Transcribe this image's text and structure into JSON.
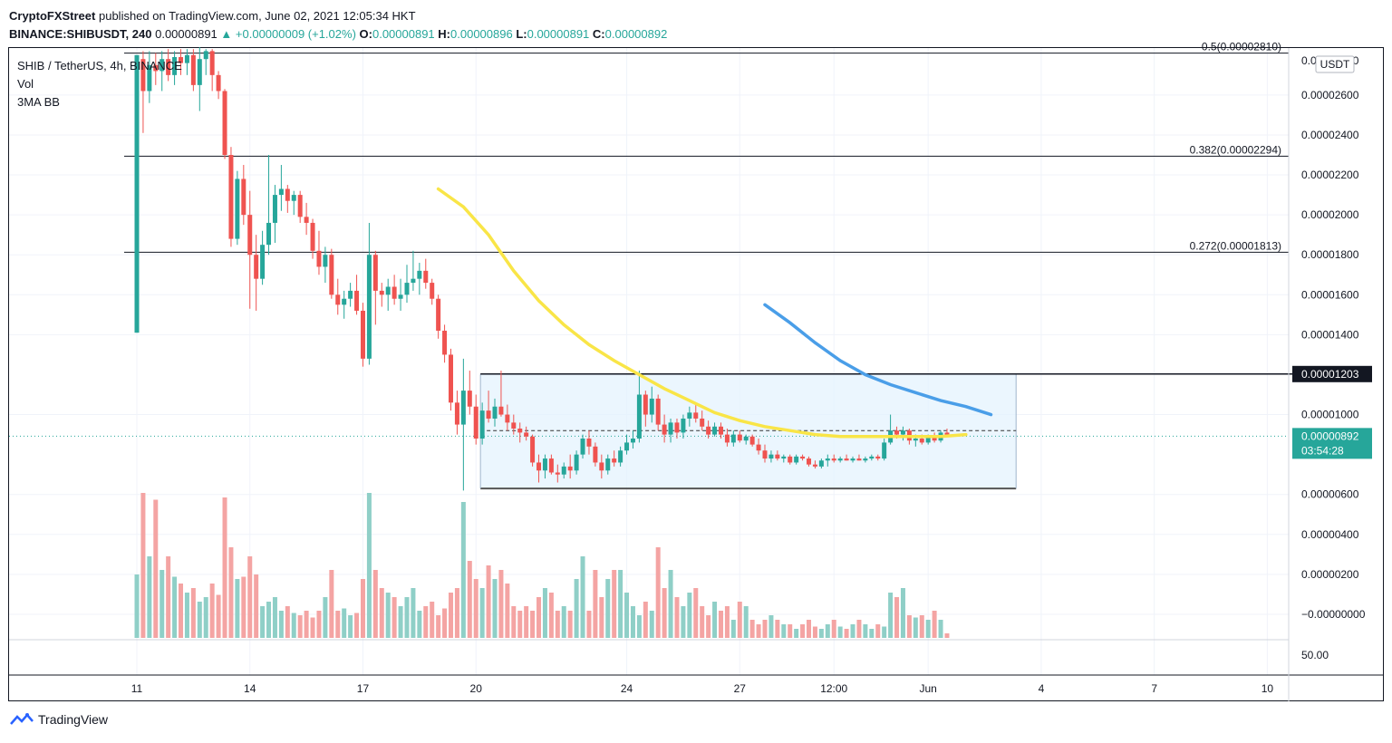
{
  "header": {
    "publisher": "CryptoFXStreet",
    "published_text": "published on TradingView.com, June 02, 2021 12:05:34 HKT",
    "symbol": "BINANCE:SHIBUSDT, 240",
    "last": "0.00000891",
    "change": "▲ +0.00000009 (+1.02%)",
    "o_label": "O:",
    "o_value": "0.00000891",
    "h_label": "H:",
    "h_value": "0.00000896",
    "l_label": "L:",
    "l_value": "0.00000891",
    "c_label": "C:",
    "c_value": "0.00000892"
  },
  "legend": {
    "pair": "SHIB / TetherUS, 4h, BINANCE",
    "vol": "Vol",
    "indicator": "3MA BB"
  },
  "footer": {
    "brand": "TradingView"
  },
  "colors": {
    "up": "#26a69a",
    "down": "#ef5350",
    "vol_up": "#8fcfc7",
    "vol_down": "#f4a4a3",
    "ma_yellow": "#f9e547",
    "ma_blue": "#4a9ee8",
    "range_fill": "#e3f2fd",
    "price_label": "#26a69a"
  },
  "chart_data": {
    "type": "candlestick",
    "currency_label": "USDT",
    "x_ticks": [
      "11",
      "14",
      "17",
      "20",
      "24",
      "27",
      "12:00",
      "Jun",
      "4",
      "7",
      "10"
    ],
    "x_tick_index": [
      0,
      18,
      36,
      54,
      78,
      96,
      111,
      126,
      144,
      162,
      180
    ],
    "y_ticks": [
      {
        "v": 2.6e-05,
        "label": "0.00002600"
      },
      {
        "v": 2.4e-05,
        "label": "0.00002400"
      },
      {
        "v": 2.2e-05,
        "label": "0.00002200"
      },
      {
        "v": 2e-05,
        "label": "0.00002000"
      },
      {
        "v": 1.8e-05,
        "label": "0.00001800"
      },
      {
        "v": 1.6e-05,
        "label": "0.00001600"
      },
      {
        "v": 1.4e-05,
        "label": "0.00001400"
      },
      {
        "v": 1e-05,
        "label": "0.00001000"
      },
      {
        "v": 6e-06,
        "label": "0.00000600"
      },
      {
        "v": 4e-06,
        "label": "0.00000400"
      },
      {
        "v": 2e-06,
        "label": "0.00000200"
      },
      {
        "v": 0.0,
        "label": "−0.00000000"
      }
    ],
    "ylim": [
      -5e-07,
      2.79e-05
    ],
    "fib_levels": [
      {
        "label": "0.5(0.00002810)",
        "value": 2.81e-05
      },
      {
        "label": "0.382(0.00002294)",
        "value": 2.294e-05
      },
      {
        "label": "0.272(0.00001813)",
        "value": 1.813e-05
      }
    ],
    "resistance": {
      "value": 1.203e-05,
      "label": "0.00001203"
    },
    "support": {
      "value": 6.3e-06
    },
    "current_price": {
      "value": 8.92e-06,
      "label": "0.00000892",
      "countdown": "03:54:28"
    },
    "volume_scale_label": "50.00",
    "candles": [
      [
        1.41e-05,
        2.8e-05,
        1.41e-05,
        2.8e-05
      ],
      [
        2.78e-05,
        2.82e-05,
        2.41e-05,
        2.62e-05
      ],
      [
        2.62e-05,
        2.82e-05,
        2.56e-05,
        2.75e-05
      ],
      [
        2.75e-05,
        2.81e-05,
        2.65e-05,
        2.72e-05
      ],
      [
        2.72e-05,
        2.82e-05,
        2.62e-05,
        2.78e-05
      ],
      [
        2.78e-05,
        2.83e-05,
        2.67e-05,
        2.7e-05
      ],
      [
        2.7e-05,
        2.82e-05,
        2.65e-05,
        2.79e-05
      ],
      [
        2.79e-05,
        2.83e-05,
        2.7e-05,
        2.76e-05
      ],
      [
        2.76e-05,
        2.83e-05,
        2.7e-05,
        2.8e-05
      ],
      [
        2.8e-05,
        2.83e-05,
        2.62e-05,
        2.65e-05
      ],
      [
        2.65e-05,
        2.84e-05,
        2.52e-05,
        2.78e-05
      ],
      [
        2.78e-05,
        2.83e-05,
        2.7e-05,
        2.82e-05
      ],
      [
        2.82e-05,
        2.83e-05,
        2.62e-05,
        2.7e-05
      ],
      [
        2.7e-05,
        2.72e-05,
        2.58e-05,
        2.62e-05
      ],
      [
        2.62e-05,
        2.63e-05,
        2.28e-05,
        2.3e-05
      ],
      [
        2.3e-05,
        2.34e-05,
        1.84e-05,
        1.88e-05
      ],
      [
        1.88e-05,
        2.22e-05,
        1.85e-05,
        2.18e-05
      ],
      [
        2.18e-05,
        2.25e-05,
        1.95e-05,
        2e-05
      ],
      [
        2e-05,
        2.12e-05,
        1.53e-05,
        1.8e-05
      ],
      [
        1.8e-05,
        1.9e-05,
        1.52e-05,
        1.68e-05
      ],
      [
        1.68e-05,
        1.92e-05,
        1.65e-05,
        1.85e-05
      ],
      [
        1.85e-05,
        2.3e-05,
        1.8e-05,
        1.96e-05
      ],
      [
        1.96e-05,
        2.15e-05,
        1.86e-05,
        2.1e-05
      ],
      [
        2.1e-05,
        2.25e-05,
        2.02e-05,
        2.13e-05
      ],
      [
        2.13e-05,
        2.15e-05,
        2.01e-05,
        2.07e-05
      ],
      [
        2.07e-05,
        2.12e-05,
        2e-05,
        2.1e-05
      ],
      [
        2.1e-05,
        2.12e-05,
        1.96e-05,
        1.99e-05
      ],
      [
        1.99e-05,
        2.06e-05,
        1.9e-05,
        1.96e-05
      ],
      [
        1.96e-05,
        1.98e-05,
        1.78e-05,
        1.82e-05
      ],
      [
        1.82e-05,
        1.92e-05,
        1.7e-05,
        1.74e-05
      ],
      [
        1.74e-05,
        1.84e-05,
        1.66e-05,
        1.8e-05
      ],
      [
        1.8e-05,
        1.83e-05,
        1.58e-05,
        1.6e-05
      ],
      [
        1.6e-05,
        1.68e-05,
        1.5e-05,
        1.55e-05
      ],
      [
        1.55e-05,
        1.62e-05,
        1.48e-05,
        1.58e-05
      ],
      [
        1.58e-05,
        1.66e-05,
        1.54e-05,
        1.62e-05
      ],
      [
        1.62e-05,
        1.7e-05,
        1.5e-05,
        1.52e-05
      ],
      [
        1.52e-05,
        1.56e-05,
        1.24e-05,
        1.28e-05
      ],
      [
        1.28e-05,
        1.96e-05,
        1.25e-05,
        1.8e-05
      ],
      [
        1.8e-05,
        1.82e-05,
        1.45e-05,
        1.62e-05
      ],
      [
        1.62e-05,
        1.66e-05,
        1.54e-05,
        1.6e-05
      ],
      [
        1.6e-05,
        1.68e-05,
        1.52e-05,
        1.64e-05
      ],
      [
        1.64e-05,
        1.7e-05,
        1.55e-05,
        1.58e-05
      ],
      [
        1.58e-05,
        1.68e-05,
        1.52e-05,
        1.6e-05
      ],
      [
        1.6e-05,
        1.75e-05,
        1.56e-05,
        1.66e-05
      ],
      [
        1.66e-05,
        1.82e-05,
        1.62e-05,
        1.68e-05
      ],
      [
        1.68e-05,
        1.76e-05,
        1.6e-05,
        1.72e-05
      ],
      [
        1.72e-05,
        1.78e-05,
        1.63e-05,
        1.66e-05
      ],
      [
        1.66e-05,
        1.68e-05,
        1.55e-05,
        1.58e-05
      ],
      [
        1.58e-05,
        1.6e-05,
        1.38e-05,
        1.42e-05
      ],
      [
        1.42e-05,
        1.45e-05,
        1.26e-05,
        1.3e-05
      ],
      [
        1.3e-05,
        1.33e-05,
        1.02e-05,
        1.06e-05
      ],
      [
        1.06e-05,
        1.12e-05,
        9e-06,
        9.5e-06
      ],
      [
        9.5e-06,
        1.28e-05,
        6.2e-06,
        1.12e-05
      ],
      [
        1.12e-05,
        1.22e-05,
        1e-05,
        1.04e-05
      ],
      [
        1.04e-05,
        1.1e-05,
        8.5e-06,
        8.8e-06
      ],
      [
        8.8e-06,
        1.06e-05,
        8.5e-06,
        1.02e-05
      ],
      [
        1.02e-05,
        1.12e-05,
        9.6e-06,
        9.8e-06
      ],
      [
        9.8e-06,
        1.08e-05,
        9.4e-06,
        1.04e-05
      ],
      [
        1.04e-05,
        1.22e-05,
        9.9e-06,
        1e-05
      ],
      [
        1e-05,
        1.05e-05,
        9.2e-06,
        9.6e-06
      ],
      [
        9.6e-06,
        1e-05,
        9e-06,
        9.3e-06
      ],
      [
        9.3e-06,
        9.6e-06,
        8.6e-06,
        9.1e-06
      ],
      [
        9.1e-06,
        9.4e-06,
        8.7e-06,
        8.9e-06
      ],
      [
        8.9e-06,
        9e-06,
        7.4e-06,
        7.6e-06
      ],
      [
        7.6e-06,
        8e-06,
        6.6e-06,
        7.2e-06
      ],
      [
        7.2e-06,
        8e-06,
        6.8e-06,
        7.8e-06
      ],
      [
        7.8e-06,
        8e-06,
        7e-06,
        7.1e-06
      ],
      [
        7.1e-06,
        7.5e-06,
        6.6e-06,
        7e-06
      ],
      [
        7e-06,
        7.6e-06,
        6.8e-06,
        7.4e-06
      ],
      [
        7.4e-06,
        8e-06,
        6.8e-06,
        7.2e-06
      ],
      [
        7.2e-06,
        8.2e-06,
        7e-06,
        8e-06
      ],
      [
        8e-06,
        9e-06,
        7.8e-06,
        8.8e-06
      ],
      [
        8.8e-06,
        9.2e-06,
        8e-06,
        8.4e-06
      ],
      [
        8.4e-06,
        8.6e-06,
        7.4e-06,
        7.6e-06
      ],
      [
        7.6e-06,
        8e-06,
        6.8e-06,
        7.2e-06
      ],
      [
        7.2e-06,
        8e-06,
        7e-06,
        7.8e-06
      ],
      [
        7.8e-06,
        8.2e-06,
        7.4e-06,
        7.6e-06
      ],
      [
        7.6e-06,
        8.4e-06,
        7.4e-06,
        8.2e-06
      ],
      [
        8.2e-06,
        9e-06,
        8e-06,
        8.6e-06
      ],
      [
        8.6e-06,
        9.2e-06,
        8.3e-06,
        8.8e-06
      ],
      [
        8.8e-06,
        1.22e-05,
        8.6e-06,
        1.1e-05
      ],
      [
        1.1e-05,
        1.12e-05,
        9.4e-06,
        1e-05
      ],
      [
        1e-05,
        1.14e-05,
        9.6e-06,
        1.08e-05
      ],
      [
        1.08e-05,
        1.1e-05,
        9.2e-06,
        9.5e-06
      ],
      [
        9.5e-06,
        1e-05,
        8.6e-06,
        9e-06
      ],
      [
        9e-06,
        9.8e-06,
        8.6e-06,
        9.6e-06
      ],
      [
        9.6e-06,
        9.8e-06,
        8.8e-06,
        9.1e-06
      ],
      [
        9.1e-06,
        1e-05,
        8.8e-06,
        9.8e-06
      ],
      [
        9.8e-06,
        1.04e-05,
        9.4e-06,
        1.01e-05
      ],
      [
        1.01e-05,
        1.05e-05,
        9.6e-06,
        9.8e-06
      ],
      [
        9.8e-06,
        1.02e-05,
        9.2e-06,
        9.4e-06
      ],
      [
        9.4e-06,
        9.7e-06,
        8.8e-06,
        9e-06
      ],
      [
        9e-06,
        9.6e-06,
        8.9e-06,
        9.4e-06
      ],
      [
        9.4e-06,
        9.6e-06,
        8.8e-06,
        9e-06
      ],
      [
        9e-06,
        9.3e-06,
        8.4e-06,
        8.6e-06
      ],
      [
        8.6e-06,
        9.2e-06,
        8.4e-06,
        9e-06
      ],
      [
        9e-06,
        9.2e-06,
        8.6e-06,
        8.7e-06
      ],
      [
        8.7e-06,
        9e-06,
        8.5e-06,
        8.9e-06
      ],
      [
        8.9e-06,
        9e-06,
        8.4e-06,
        8.5e-06
      ],
      [
        8.5e-06,
        8.8e-06,
        8e-06,
        8.2e-06
      ],
      [
        8.2e-06,
        8.5e-06,
        7.6e-06,
        7.8e-06
      ],
      [
        7.8e-06,
        8.2e-06,
        7.6e-06,
        8e-06
      ],
      [
        8e-06,
        8.2e-06,
        7.7e-06,
        7.8e-06
      ],
      [
        7.8e-06,
        8e-06,
        7.6e-06,
        7.9e-06
      ],
      [
        7.9e-06,
        8e-06,
        7.5e-06,
        7.6e-06
      ],
      [
        7.6e-06,
        8e-06,
        7.5e-06,
        7.9e-06
      ],
      [
        7.9e-06,
        8e-06,
        7.7e-06,
        7.8e-06
      ],
      [
        7.8e-06,
        7.9e-06,
        7.4e-06,
        7.5e-06
      ],
      [
        7.5e-06,
        7.7e-06,
        7.3e-06,
        7.4e-06
      ],
      [
        7.4e-06,
        7.8e-06,
        7.3e-06,
        7.7e-06
      ],
      [
        7.7e-06,
        8e-06,
        7.4e-06,
        7.8e-06
      ],
      [
        7.8e-06,
        8e-06,
        7.6e-06,
        7.7e-06
      ],
      [
        7.7e-06,
        7.9e-06,
        7.6e-06,
        7.8e-06
      ],
      [
        7.8e-06,
        8e-06,
        7.7e-06,
        7.7e-06
      ],
      [
        7.7e-06,
        7.9e-06,
        7.6e-06,
        7.8e-06
      ],
      [
        7.8e-06,
        8e-06,
        7.7e-06,
        7.7e-06
      ],
      [
        7.7e-06,
        7.9e-06,
        7.6e-06,
        7.8e-06
      ],
      [
        7.8e-06,
        8e-06,
        7.7e-06,
        7.9e-06
      ],
      [
        7.9e-06,
        8e-06,
        7.7e-06,
        7.8e-06
      ],
      [
        7.8e-06,
        8.8e-06,
        7.7e-06,
        8.6e-06
      ],
      [
        8.6e-06,
        1e-05,
        8.5e-06,
        9.2e-06
      ],
      [
        9.2e-06,
        9.4e-06,
        8.8e-06,
        9e-06
      ],
      [
        9e-06,
        9.4e-06,
        8.7e-06,
        9.2e-06
      ],
      [
        9.2e-06,
        9.3e-06,
        8.5e-06,
        8.7e-06
      ],
      [
        8.7e-06,
        9e-06,
        8.4e-06,
        8.8e-06
      ],
      [
        8.8e-06,
        9e-06,
        8.5e-06,
        8.6e-06
      ],
      [
        8.6e-06,
        9e-06,
        8.5e-06,
        8.9e-06
      ],
      [
        8.9e-06,
        9.1e-06,
        8.6e-06,
        8.7e-06
      ],
      [
        8.7e-06,
        9.2e-06,
        8.6e-06,
        9.1e-06
      ],
      [
        9.1e-06,
        9.3e-06,
        8.9e-06,
        8.9e-06
      ]
    ],
    "volumes": [
      28,
      64,
      36,
      61,
      30,
      36,
      27,
      24,
      20,
      22,
      16,
      18,
      24,
      19,
      62,
      40,
      26,
      27,
      36,
      28,
      14,
      16,
      18,
      12,
      14,
      11,
      10,
      12,
      9,
      12,
      18,
      30,
      12,
      13,
      10,
      11,
      26,
      64,
      30,
      22,
      20,
      18,
      14,
      18,
      22,
      12,
      14,
      16,
      10,
      13,
      20,
      22,
      60,
      34,
      26,
      22,
      32,
      26,
      30,
      24,
      14,
      12,
      14,
      12,
      18,
      22,
      20,
      12,
      14,
      12,
      26,
      36,
      12,
      30,
      18,
      26,
      30,
      30,
      20,
      14,
      10,
      16,
      12,
      40,
      22,
      30,
      18,
      14,
      20,
      22,
      14,
      10,
      16,
      12,
      14,
      8,
      16,
      14,
      8,
      6,
      8,
      10,
      8,
      6,
      6,
      4,
      6,
      8,
      5,
      4,
      6,
      8,
      5,
      4,
      6,
      8,
      6,
      4,
      6,
      5,
      20,
      18,
      22,
      10,
      9,
      10,
      8,
      12,
      8,
      2
    ],
    "ma_yellow": [
      [
        48,
        2.13e-05
      ],
      [
        52,
        2.04e-05
      ],
      [
        56,
        1.9e-05
      ],
      [
        60,
        1.72e-05
      ],
      [
        64,
        1.57e-05
      ],
      [
        68,
        1.45e-05
      ],
      [
        72,
        1.35e-05
      ],
      [
        76,
        1.27e-05
      ],
      [
        80,
        1.2e-05
      ],
      [
        84,
        1.13e-05
      ],
      [
        88,
        1.07e-05
      ],
      [
        92,
        1.01e-05
      ],
      [
        96,
        9.7e-06
      ],
      [
        100,
        9.4e-06
      ],
      [
        104,
        9.2e-06
      ],
      [
        108,
        9e-06
      ],
      [
        112,
        8.9e-06
      ],
      [
        116,
        8.9e-06
      ],
      [
        120,
        8.9e-06
      ],
      [
        124,
        8.9e-06
      ],
      [
        128,
        8.9e-06
      ],
      [
        132,
        9e-06
      ]
    ],
    "ma_blue": [
      [
        100,
        1.55e-05
      ],
      [
        104,
        1.46e-05
      ],
      [
        108,
        1.36e-05
      ],
      [
        112,
        1.27e-05
      ],
      [
        116,
        1.2e-05
      ],
      [
        120,
        1.15e-05
      ],
      [
        124,
        1.11e-05
      ],
      [
        128,
        1.07e-05
      ],
      [
        132,
        1.04e-05
      ],
      [
        136,
        1e-05
      ]
    ]
  }
}
